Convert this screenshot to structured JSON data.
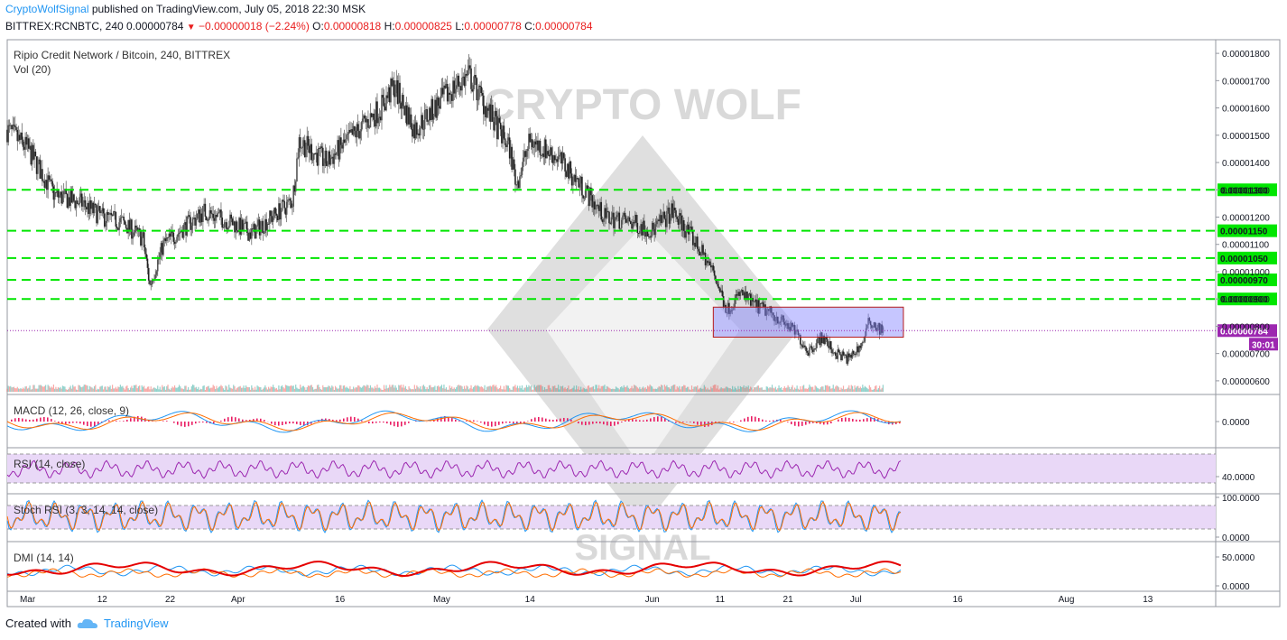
{
  "header": {
    "publisher": "CryptoWolfSignal",
    "published_text": "published on TradingView.com, July 05, 2018 22:30 MSK",
    "symbol": "BITTREX:RCNBTC, 240",
    "last": "0.00000784",
    "change": "−0.00000018 (−2.24%)",
    "o_label": "O:",
    "o": "0.00000818",
    "h_label": "H:",
    "h": "0.00000825",
    "l_label": "L:",
    "l": "0.00000778",
    "c_label": "C:",
    "c": "0.00000784",
    "down_icon": "triangle-down-icon"
  },
  "watermark": {
    "top": "CRYPTO WOLF",
    "bottom": "SIGNAL"
  },
  "footer": {
    "created_with": "Created with",
    "brand": "TradingView",
    "logo_icon": "tradingview-cloud-icon"
  },
  "colors": {
    "support": "#00e600",
    "current": "#9c27b0",
    "box_fill": "#8080ff",
    "box_border": "#b71c1c",
    "macd_line": "#2196f3",
    "signal_line": "#ff6d00",
    "hist": "#e91e63",
    "rsi": "#9c27b0",
    "rsi_band": "#e9d8f7",
    "stoch_k": "#2196f3",
    "stoch_d": "#ff6d00",
    "adx": "#e50000",
    "di_plus": "#2196f3",
    "di_minus": "#ff6d00"
  },
  "chart_data": {
    "type": "candlestick",
    "title": "Ripio Credit Network / Bitcoin, 240, BITTREX",
    "volume_label": "Vol (20)",
    "x_ticks": [
      "Mar",
      "12",
      "22",
      "Apr",
      "16",
      "May",
      "14",
      "Jun",
      "11",
      "21",
      "Jul",
      "16",
      "Aug",
      "13"
    ],
    "y_ticks": [
      "0.00001800",
      "0.00001700",
      "0.00001600",
      "0.00001500",
      "0.00001400",
      "0.00001300",
      "0.00001200",
      "0.00001100",
      "0.00001000",
      "0.00000900",
      "0.00000800",
      "0.00000700",
      "0.00000600"
    ],
    "ylim": [
      5.5e-06,
      1.85e-05
    ],
    "price_path": [
      [
        "2018-02-26",
        1.52e-05
      ],
      [
        "2018-03-01",
        1.45e-05
      ],
      [
        "2018-03-05",
        1.28e-05
      ],
      [
        "2018-03-09",
        1.25e-05
      ],
      [
        "2018-03-12",
        1.2e-05
      ],
      [
        "2018-03-15",
        1.18e-05
      ],
      [
        "2018-03-18",
        1.12e-05
      ],
      [
        "2018-03-19",
        9.5e-06
      ],
      [
        "2018-03-21",
        1.1e-05
      ],
      [
        "2018-03-24",
        1.16e-05
      ],
      [
        "2018-03-27",
        1.22e-05
      ],
      [
        "2018-03-31",
        1.18e-05
      ],
      [
        "2018-04-03",
        1.14e-05
      ],
      [
        "2018-04-06",
        1.2e-05
      ],
      [
        "2018-04-09",
        1.26e-05
      ],
      [
        "2018-04-10",
        1.48e-05
      ],
      [
        "2018-04-14",
        1.4e-05
      ],
      [
        "2018-04-18",
        1.5e-05
      ],
      [
        "2018-04-22",
        1.6e-05
      ],
      [
        "2018-04-24",
        1.68e-05
      ],
      [
        "2018-04-27",
        1.52e-05
      ],
      [
        "2018-04-30",
        1.6e-05
      ],
      [
        "2018-05-03",
        1.68e-05
      ],
      [
        "2018-05-05",
        1.72e-05
      ],
      [
        "2018-05-08",
        1.58e-05
      ],
      [
        "2018-05-11",
        1.45e-05
      ],
      [
        "2018-05-12",
        1.32e-05
      ],
      [
        "2018-05-14",
        1.48e-05
      ],
      [
        "2018-05-18",
        1.42e-05
      ],
      [
        "2018-05-22",
        1.3e-05
      ],
      [
        "2018-05-25",
        1.2e-05
      ],
      [
        "2018-05-29",
        1.18e-05
      ],
      [
        "2018-06-01",
        1.15e-05
      ],
      [
        "2018-06-04",
        1.22e-05
      ],
      [
        "2018-06-07",
        1.12e-05
      ],
      [
        "2018-06-10",
        1e-05
      ],
      [
        "2018-06-12",
        8.6e-06
      ],
      [
        "2018-06-14",
        9.2e-06
      ],
      [
        "2018-06-16",
        8.8e-06
      ],
      [
        "2018-06-19",
        8.4e-06
      ],
      [
        "2018-06-22",
        7.8e-06
      ],
      [
        "2018-06-24",
        7.1e-06
      ],
      [
        "2018-06-26",
        7.6e-06
      ],
      [
        "2018-06-28",
        7e-06
      ],
      [
        "2018-06-30",
        6.8e-06
      ],
      [
        "2018-07-02",
        7.4e-06
      ],
      [
        "2018-07-03",
        8.2e-06
      ],
      [
        "2018-07-05",
        7.8e-06
      ]
    ],
    "support_levels": [
      1.3e-05,
      1.15e-05,
      1.05e-05,
      9.7e-06,
      9e-06
    ],
    "support_labels": [
      "0.00001300",
      "0.00001150",
      "0.00001050",
      "0.00000970",
      "0.00000900"
    ],
    "current_price": 7.84e-06,
    "current_label": "0.00000784",
    "countdown": "30:01",
    "range_box": {
      "x_from": "2018-06-10",
      "x_to": "2018-07-08",
      "y_from": 7.6e-06,
      "y_to": 8.7e-06
    },
    "panes": [
      {
        "label": "MACD (12, 26, close, 9)",
        "ticks": [
          "0.0000"
        ]
      },
      {
        "label": "RSI (14, close)",
        "ticks": [
          "40.0000"
        ]
      },
      {
        "label": "Stoch RSI (3, 3, 14, 14, close)",
        "ticks": [
          "100.0000",
          "0.0000"
        ]
      },
      {
        "label": "DMI (14, 14)",
        "ticks": [
          "50.0000",
          "0.0000"
        ]
      }
    ]
  }
}
